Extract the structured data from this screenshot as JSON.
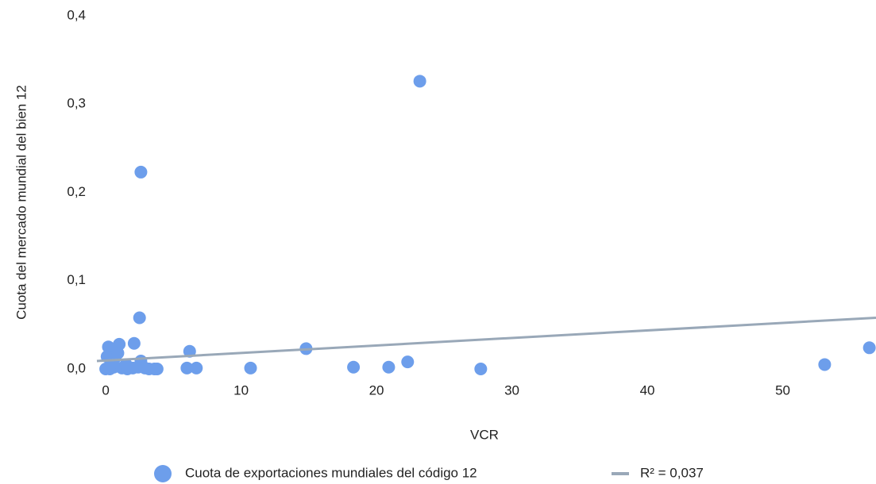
{
  "chart_data": {
    "type": "scatter",
    "x_label": "VCR",
    "y_label": "Cuota del mercado mundial del bien 12",
    "series": [
      {
        "name": "Cuota de exportaciones mundiales del código 12",
        "color": "#6d9eeb",
        "x": [
          23.2,
          2.6,
          2.5,
          0.2,
          1.0,
          2.1,
          6.2,
          14.8,
          22.3,
          53.1,
          56.4,
          2.6,
          0.1,
          0.7,
          0.9,
          6.0,
          6.7,
          10.7,
          18.3,
          20.9,
          27.7,
          0.0,
          0.3,
          0.6,
          1.2,
          1.6,
          2.0,
          2.4,
          2.9,
          3.2,
          3.6,
          3.8,
          1.5,
          0.4
        ],
        "values": [
          0.326,
          0.223,
          0.058,
          0.025,
          0.028,
          0.029,
          0.02,
          0.023,
          0.008,
          0.005,
          0.024,
          0.009,
          0.014,
          0.013,
          0.018,
          0.001,
          0.001,
          0.001,
          0.002,
          0.002,
          0.0,
          0.0,
          0.0,
          0.002,
          0.001,
          0.0,
          0.001,
          0.002,
          0.001,
          0.0,
          0.0,
          0.0,
          0.005,
          0.006
        ]
      }
    ],
    "trendline": {
      "name": "R² = 0,037",
      "color": "#99a8b8",
      "x": [
        -0.65,
        56.89
      ],
      "values": [
        0.009,
        0.058
      ]
    },
    "xlim": [
      -0.65,
      56.89
    ],
    "ylim": [
      0,
      0.4
    ],
    "xticks": [
      0,
      10,
      20,
      30,
      40,
      50
    ],
    "yticks": [
      {
        "value": 0,
        "label": "0,0"
      },
      {
        "value": 0.1,
        "label": "0,1"
      },
      {
        "value": 0.2,
        "label": "0,2"
      },
      {
        "value": 0.3,
        "label": "0,3"
      },
      {
        "value": 0.4,
        "label": "0,4"
      }
    ],
    "grid": false
  }
}
